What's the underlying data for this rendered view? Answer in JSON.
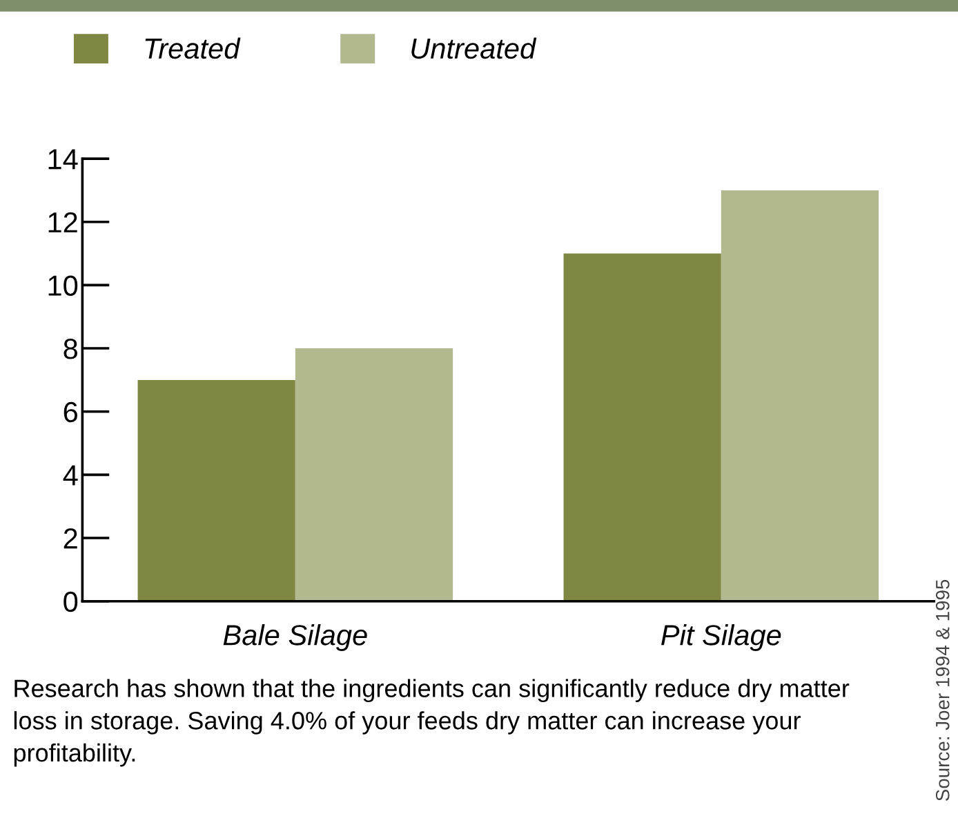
{
  "chart_data": {
    "type": "bar",
    "categories": [
      "Bale Silage",
      "Pit Silage"
    ],
    "series": [
      {
        "name": "Treated",
        "color": "#7f8743",
        "values": [
          7,
          11
        ]
      },
      {
        "name": "Untreated",
        "color": "#b3b98e",
        "values": [
          8,
          13
        ]
      }
    ],
    "ylim": [
      0,
      14
    ],
    "yticks": [
      0,
      2,
      4,
      6,
      8,
      10,
      12,
      14
    ],
    "grid": false,
    "legend": "top left",
    "annotations": [
      "Research has shown that the ingredients can significantly reduce dry matter loss in storage. Saving 4.0% of your feeds dry matter can increase your profitability.",
      "Source: Joer 1994 & 1995"
    ]
  }
}
